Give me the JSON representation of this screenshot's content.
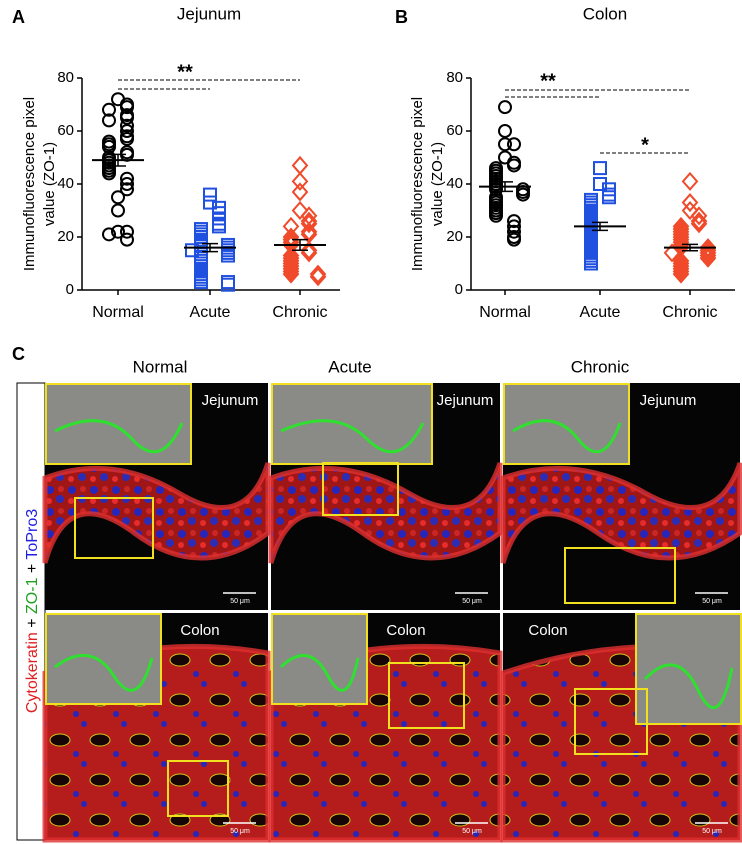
{
  "chart_data": [
    {
      "type": "dot",
      "panel": "A",
      "title": "Jejunum",
      "y_label": [
        "Immunofluorescence pixel",
        "value (ZO-1)"
      ],
      "categories": [
        "Normal",
        "Acute",
        "Chronic"
      ],
      "groups": [
        {
          "color": "#000000",
          "marker": "circle",
          "mean": 49,
          "sem": 2.2,
          "values": [
            72,
            70,
            69,
            68,
            66,
            65,
            64,
            62,
            60,
            58,
            57,
            56,
            55,
            54,
            52,
            51,
            50,
            49,
            48,
            47,
            46,
            45,
            44,
            42,
            40,
            38,
            35,
            30,
            22,
            22,
            21,
            19
          ]
        },
        {
          "color": "#2050e0",
          "marker": "square",
          "mean": 16,
          "sem": 1.5,
          "values": [
            36,
            33,
            31,
            29,
            27,
            25,
            24,
            23,
            22,
            21,
            20,
            19,
            18,
            17,
            17,
            16,
            15,
            15,
            14,
            13,
            12,
            11,
            10,
            9,
            8,
            7,
            6,
            5,
            4,
            3,
            3,
            2
          ]
        },
        {
          "color": "#f04a2a",
          "marker": "diamond",
          "mean": 17,
          "sem": 2,
          "values": [
            47,
            41,
            37,
            30,
            28,
            26,
            25,
            24,
            22,
            21,
            20,
            19,
            18,
            17,
            15,
            14,
            13,
            12,
            11,
            10,
            9,
            8,
            7,
            6,
            6,
            5
          ]
        }
      ],
      "ylim": [
        0,
        80
      ],
      "yticks": [
        0,
        20,
        40,
        60,
        80
      ],
      "annotations": [
        {
          "text": "**"
        }
      ]
    },
    {
      "type": "dot",
      "panel": "B",
      "title": "Colon",
      "y_label": [
        "Immunofluorescence pixel",
        "value (ZO-1)"
      ],
      "categories": [
        "Normal",
        "Acute",
        "Chronic"
      ],
      "groups": [
        {
          "color": "#000000",
          "marker": "circle",
          "mean": 39,
          "sem": 1.8,
          "values": [
            69,
            60,
            55,
            55,
            50,
            48,
            47,
            46,
            45,
            44,
            43,
            42,
            41,
            40,
            39,
            38,
            38,
            37,
            36,
            35,
            34,
            33,
            32,
            31,
            30,
            29,
            28,
            26,
            24,
            22,
            20,
            19
          ]
        },
        {
          "color": "#2050e0",
          "marker": "square",
          "mean": 24,
          "sem": 1.5,
          "values": [
            46,
            40,
            38,
            36,
            35,
            34,
            33,
            32,
            31,
            30,
            29,
            28,
            27,
            26,
            25,
            24,
            23,
            22,
            21,
            20,
            19,
            18,
            17,
            16,
            15,
            14,
            13,
            12,
            11,
            10
          ]
        },
        {
          "color": "#f04a2a",
          "marker": "diamond",
          "mean": 16,
          "sem": 1.2,
          "values": [
            41,
            33,
            30,
            28,
            26,
            25,
            24,
            23,
            22,
            21,
            20,
            19,
            18,
            17,
            16,
            16,
            15,
            14,
            14,
            13,
            12,
            11,
            10,
            9,
            8,
            7,
            6
          ]
        }
      ],
      "ylim": [
        0,
        80
      ],
      "yticks": [
        0,
        20,
        40,
        60,
        80
      ],
      "annotations": [
        {
          "text": "**"
        },
        {
          "text": "*"
        }
      ]
    }
  ],
  "panel_c": {
    "label": "C",
    "columns": [
      "Normal",
      "Acute",
      "Chronic"
    ],
    "stain_label": [
      "Cytokeratin",
      "+",
      "ZO-1",
      "+",
      "ToPro3"
    ],
    "images": [
      {
        "label": "Jejunum",
        "scale_bar": "50 μm"
      },
      {
        "label": "Jejunum",
        "scale_bar": "50 μm"
      },
      {
        "label": "Jejunum",
        "scale_bar": "50 μm"
      },
      {
        "label": "Colon",
        "scale_bar": "50 μm"
      },
      {
        "label": "Colon",
        "scale_bar": "50 μm"
      },
      {
        "label": "Colon",
        "scale_bar": "50 μm"
      }
    ]
  }
}
